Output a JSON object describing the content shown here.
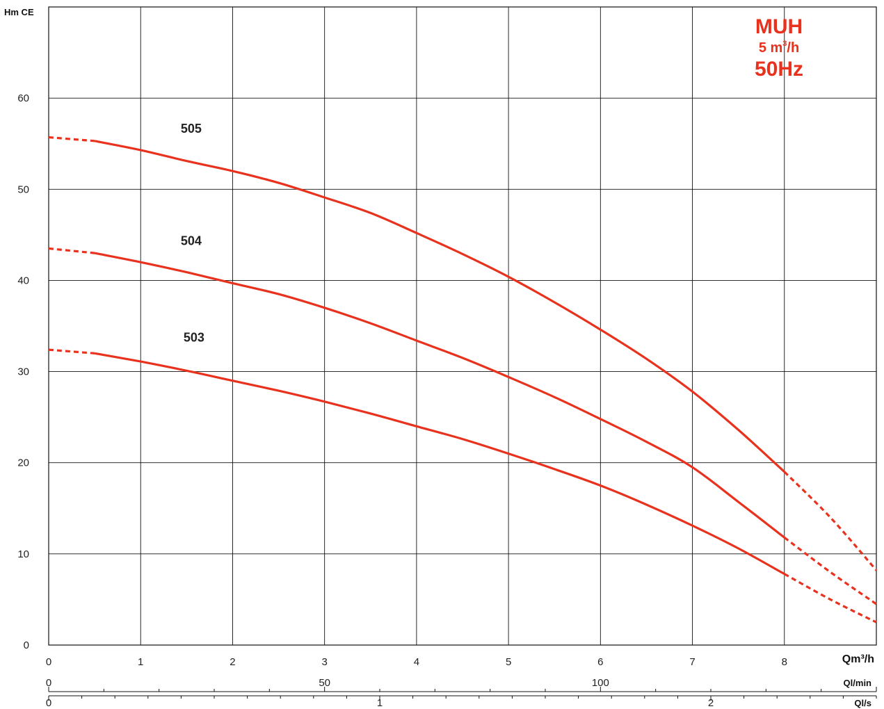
{
  "legend_box": {
    "line1": "MUH",
    "line2_pre": "5 m",
    "line2_sup": "3",
    "line2_post": "/h",
    "line3": "50Hz",
    "color": "#e8321e"
  },
  "chart_data": {
    "type": "line",
    "title": "",
    "ylabel": "Hm CE",
    "xlabel": "Qm³/h",
    "xlabel_lmin": "Ql/min",
    "xlabel_ls": "Ql/s",
    "xlim": [
      0,
      9
    ],
    "ylim": [
      0,
      70
    ],
    "x_ticks": [
      0,
      1,
      2,
      3,
      4,
      5,
      6,
      7,
      8
    ],
    "y_ticks": [
      0,
      10,
      20,
      30,
      40,
      50,
      60
    ],
    "lmin_ticks": [
      0,
      50,
      100
    ],
    "ls_ticks": [
      0,
      1,
      2
    ],
    "grid": true,
    "line_color": "#e8321e",
    "series": [
      {
        "name": "505",
        "dashed_start": [
          [
            0,
            55.7
          ],
          [
            0.5,
            55.3
          ]
        ],
        "solid": [
          [
            0.5,
            55.3
          ],
          [
            1,
            54.3
          ],
          [
            1.5,
            53.1
          ],
          [
            2,
            52.0
          ],
          [
            2.5,
            50.7
          ],
          [
            3,
            49.1
          ],
          [
            3.5,
            47.4
          ],
          [
            4,
            45.2
          ],
          [
            4.5,
            42.9
          ],
          [
            5,
            40.4
          ],
          [
            5.5,
            37.6
          ],
          [
            6,
            34.6
          ],
          [
            6.5,
            31.4
          ],
          [
            7,
            27.8
          ],
          [
            7.5,
            23.6
          ],
          [
            8,
            19.0
          ]
        ],
        "dashed_end": [
          [
            8,
            19.0
          ],
          [
            8.5,
            14.0
          ],
          [
            9,
            8.2
          ]
        ]
      },
      {
        "name": "504",
        "dashed_start": [
          [
            0,
            43.5
          ],
          [
            0.5,
            43.0
          ]
        ],
        "solid": [
          [
            0.5,
            43.0
          ],
          [
            1,
            42.0
          ],
          [
            1.5,
            40.9
          ],
          [
            2,
            39.7
          ],
          [
            2.5,
            38.5
          ],
          [
            3,
            37.0
          ],
          [
            3.5,
            35.3
          ],
          [
            4,
            33.4
          ],
          [
            4.5,
            31.5
          ],
          [
            5,
            29.4
          ],
          [
            5.5,
            27.2
          ],
          [
            6,
            24.8
          ],
          [
            6.5,
            22.3
          ],
          [
            7,
            19.5
          ],
          [
            7.5,
            15.7
          ],
          [
            8,
            11.8
          ]
        ],
        "dashed_end": [
          [
            8,
            11.8
          ],
          [
            8.5,
            8.0
          ],
          [
            9,
            4.5
          ]
        ]
      },
      {
        "name": "503",
        "dashed_start": [
          [
            0,
            32.4
          ],
          [
            0.5,
            32.0
          ]
        ],
        "solid": [
          [
            0.5,
            32.0
          ],
          [
            1,
            31.1
          ],
          [
            1.5,
            30.1
          ],
          [
            2,
            29.0
          ],
          [
            2.5,
            27.9
          ],
          [
            3,
            26.7
          ],
          [
            3.5,
            25.4
          ],
          [
            4,
            24.0
          ],
          [
            4.5,
            22.6
          ],
          [
            5,
            21.0
          ],
          [
            5.5,
            19.3
          ],
          [
            6,
            17.5
          ],
          [
            6.5,
            15.4
          ],
          [
            7,
            13.1
          ],
          [
            7.5,
            10.6
          ],
          [
            8,
            7.8
          ]
        ],
        "dashed_end": [
          [
            8,
            7.8
          ],
          [
            8.5,
            5.0
          ],
          [
            9,
            2.5
          ]
        ]
      }
    ],
    "series_label_anchor": [
      {
        "name": "505",
        "x": 1.55,
        "y": 56.2
      },
      {
        "name": "504",
        "x": 1.55,
        "y": 43.9
      },
      {
        "name": "503",
        "x": 1.58,
        "y": 33.3
      }
    ]
  }
}
